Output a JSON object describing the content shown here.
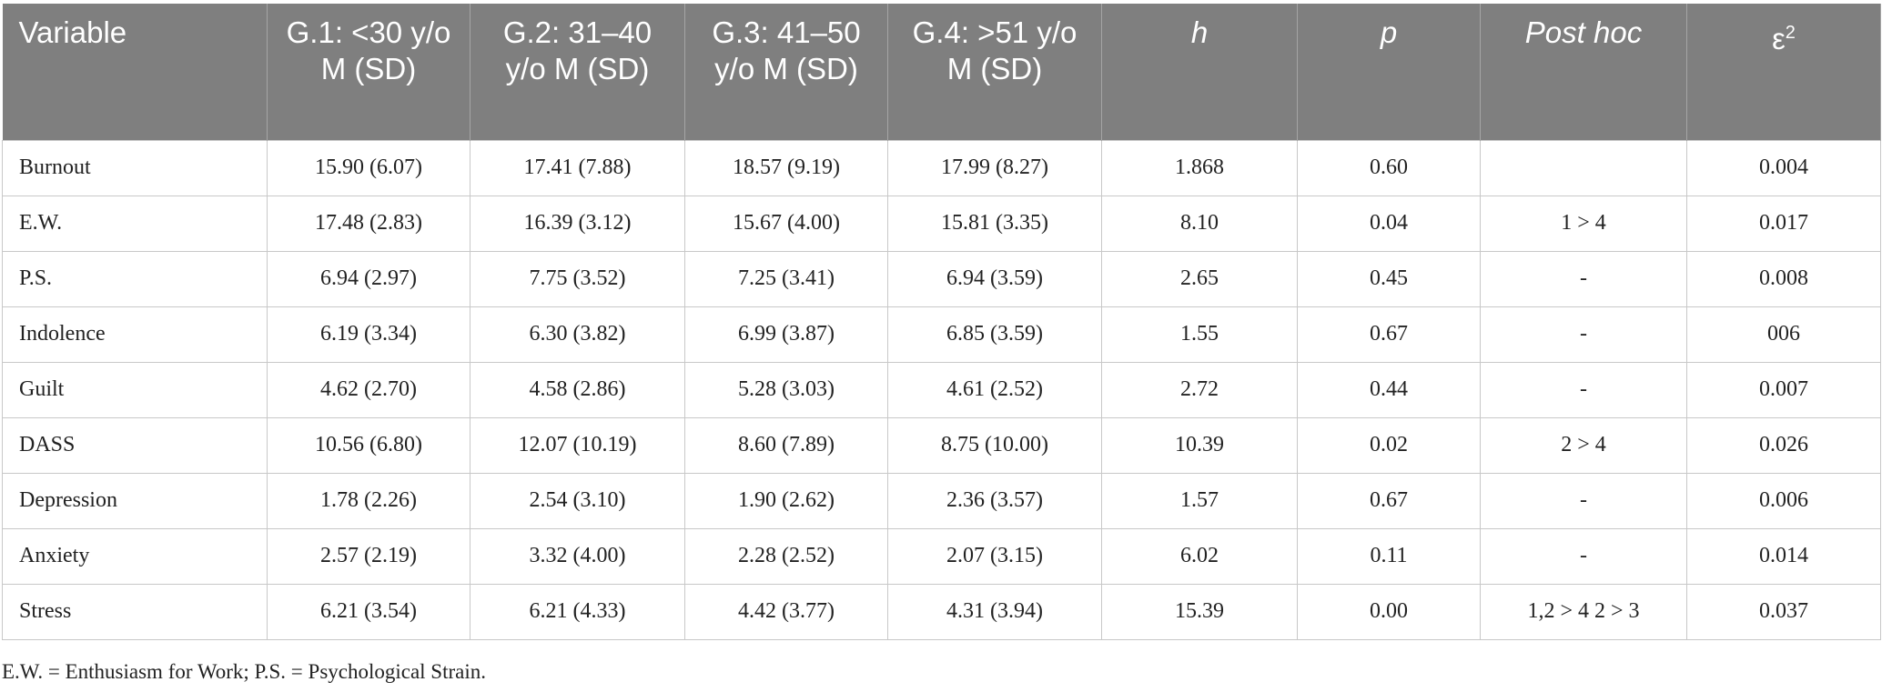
{
  "table": {
    "header": [
      "Variable",
      "G.1: <30 y/o M (SD)",
      "G.2: 31–40 y/o M (SD)",
      "G.3: 41–50 y/o M (SD)",
      "G.4: >51 y/o M (SD)",
      "h",
      "p",
      "Post hoc",
      {
        "symbol": "ε",
        "sup": "2"
      }
    ],
    "rows": [
      [
        "Burnout",
        "15.90 (6.07)",
        "17.41 (7.88)",
        "18.57 (9.19)",
        "17.99 (8.27)",
        "1.868",
        "0.60",
        null,
        "0.004"
      ],
      [
        "E.W.",
        "17.48 (2.83)",
        "16.39 (3.12)",
        "15.67 (4.00)",
        "15.81 (3.35)",
        "8.10",
        "0.04",
        "1 > 4",
        "0.017"
      ],
      [
        "P.S.",
        "6.94 (2.97)",
        "7.75 (3.52)",
        "7.25 (3.41)",
        "6.94 (3.59)",
        "2.65",
        "0.45",
        "-",
        "0.008"
      ],
      [
        "Indolence",
        "6.19 (3.34)",
        "6.30 (3.82)",
        "6.99 (3.87)",
        "6.85 (3.59)",
        "1.55",
        "0.67",
        "-",
        "006"
      ],
      [
        "Guilt",
        "4.62 (2.70)",
        "4.58 (2.86)",
        "5.28 (3.03)",
        "4.61 (2.52)",
        "2.72",
        "0.44",
        "-",
        "0.007"
      ],
      [
        "DASS",
        "10.56 (6.80)",
        "12.07 (10.19)",
        "8.60 (7.89)",
        "8.75 (10.00)",
        "10.39",
        "0.02",
        "2 > 4",
        "0.026"
      ],
      [
        "Depression",
        "1.78 (2.26)",
        "2.54 (3.10)",
        "1.90 (2.62)",
        "2.36 (3.57)",
        "1.57",
        "0.67",
        "-",
        "0.006"
      ],
      [
        "Anxiety",
        "2.57 (2.19)",
        "3.32 (4.00)",
        "2.28 (2.52)",
        "2.07 (3.15)",
        "6.02",
        "0.11",
        "-",
        "0.014"
      ],
      [
        "Stress",
        "6.21 (3.54)",
        "6.21 (4.33)",
        "4.42 (3.77)",
        "4.31 (3.94)",
        "15.39",
        "0.00",
        "1,2 > 4 2 > 3",
        "0.037"
      ]
    ]
  },
  "footnote": "E.W. = Enthusiasm for Work; P.S. = Psychological Strain."
}
